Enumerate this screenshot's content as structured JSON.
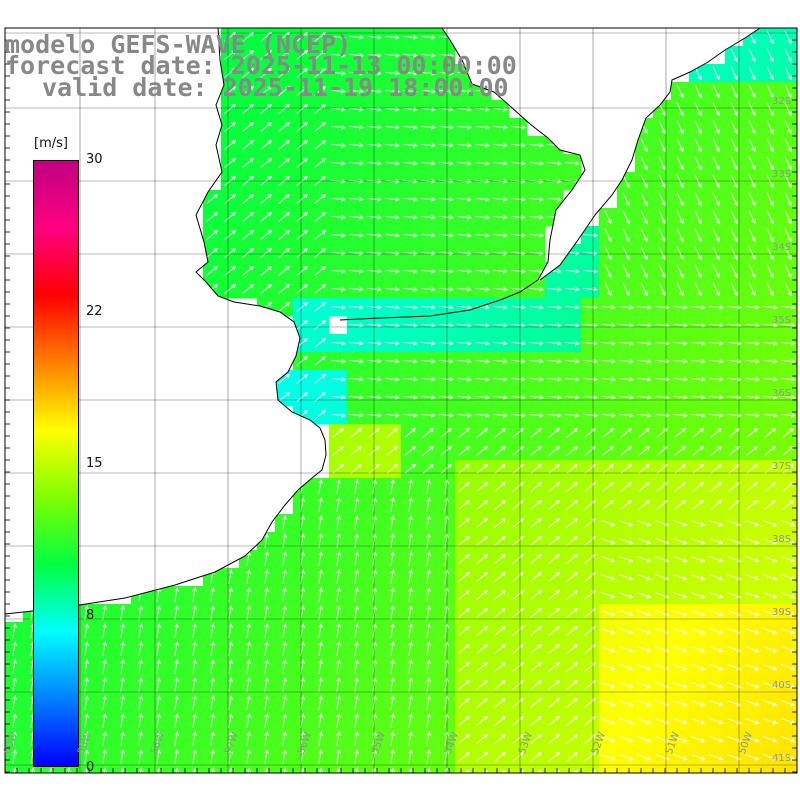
{
  "title": {
    "model": "modelo GEFS-WAVE (NCEP)",
    "forecast": "forecast date: 2025-11-13 00:00:00",
    "valid": "valid date: 2025-11-19 18:00:00"
  },
  "colorbar": {
    "unit": "[m/s]",
    "ticks": [
      "30",
      "22",
      "15",
      "8",
      "0"
    ],
    "range": [
      0,
      30
    ],
    "colors": [
      "#0000ff",
      "#0080ff",
      "#00ffff",
      "#00ff40",
      "#80ff00",
      "#ffff00",
      "#ff8000",
      "#ff0000",
      "#ff0080",
      "#c00080"
    ]
  },
  "map": {
    "variable": "wind speed",
    "land_color": "#ffffff",
    "coast_color": "#000000",
    "grid_color": "#000000",
    "lat_labels": [
      "32S",
      "33S",
      "34S",
      "35S",
      "36S",
      "37S",
      "38S",
      "39S",
      "40S",
      "41S"
    ],
    "lon_labels": [
      "60W",
      "59W",
      "58W",
      "57W",
      "56W",
      "55W",
      "54W",
      "53W",
      "52W",
      "51W",
      "50W"
    ]
  }
}
